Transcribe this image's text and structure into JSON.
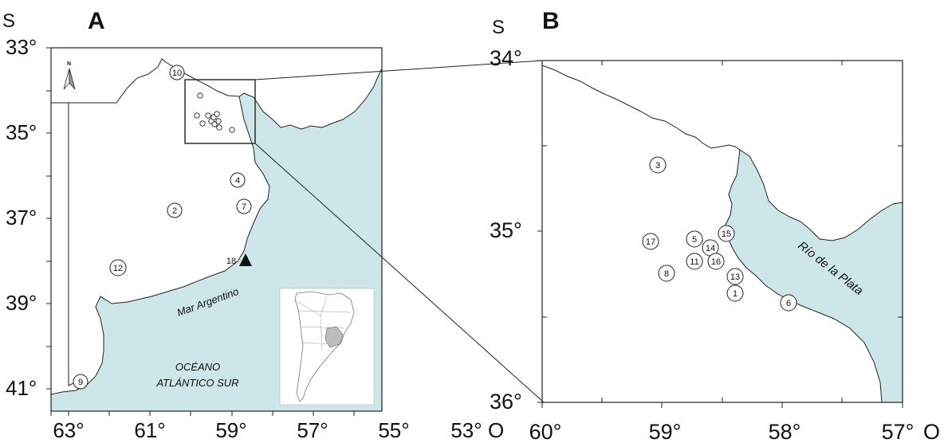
{
  "colors": {
    "water": "#cde6ea",
    "land": "#ffffff",
    "line": "#222222"
  },
  "map_a": {
    "panel_label": "A",
    "hemisphere_label": "S",
    "lat_ticks": [
      "33°",
      "35°",
      "37°",
      "39°",
      "41°"
    ],
    "lon_ticks": [
      "63°",
      "61°",
      "59°",
      "57°",
      "55°",
      "53°"
    ],
    "lon_suffix": "O",
    "north_arrow": {
      "icon": "north-arrow-icon",
      "label": "N"
    },
    "sea_labels": {
      "mar": "Mar Argentino",
      "ocean_line1": "OCÉANO",
      "ocean_line2": "ATLÁNTICO SUR"
    },
    "sites": [
      {
        "id": "10"
      },
      {
        "id": "4"
      },
      {
        "id": "2"
      },
      {
        "id": "7"
      },
      {
        "id": "12"
      },
      {
        "id": "18"
      },
      {
        "id": "9"
      }
    ],
    "inset_icon": "south-america-locator-icon"
  },
  "map_b": {
    "panel_label": "B",
    "hemisphere_label": "S",
    "lat_ticks": [
      "34°",
      "35°",
      "36°"
    ],
    "lon_ticks": [
      "60°",
      "59°",
      "58°",
      "57°"
    ],
    "lon_suffix": "O",
    "river_label": "Río de la Plata",
    "sites": [
      {
        "id": "3"
      },
      {
        "id": "17"
      },
      {
        "id": "5"
      },
      {
        "id": "15"
      },
      {
        "id": "14"
      },
      {
        "id": "11"
      },
      {
        "id": "16"
      },
      {
        "id": "8"
      },
      {
        "id": "13"
      },
      {
        "id": "1"
      },
      {
        "id": "6"
      }
    ]
  }
}
